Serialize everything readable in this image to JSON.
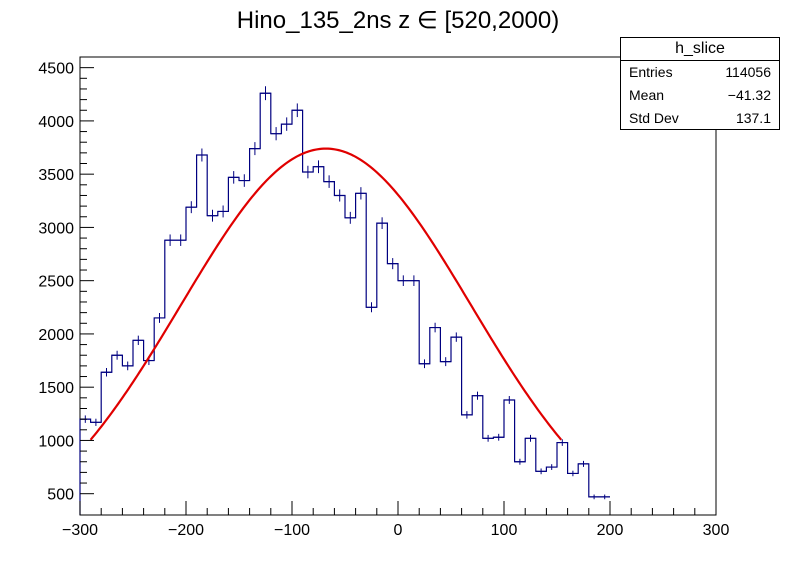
{
  "title": "Hino_135_2ns z  ∈ [520,2000)",
  "statbox": {
    "name": "h_slice",
    "rows": [
      {
        "label": "Entries",
        "value": "114056"
      },
      {
        "label": "Mean",
        "value": "−41.32"
      },
      {
        "label": "Std Dev",
        "value": "137.1"
      }
    ]
  },
  "colors": {
    "histogram": "#000080",
    "fit": "#e00000",
    "axis": "#000000",
    "background": "#ffffff"
  },
  "chart_data": {
    "type": "histogram",
    "title": "Hino_135_2ns z  ∈ [520,2000)",
    "xlabel": "",
    "ylabel": "",
    "xlim": [
      -300,
      300
    ],
    "ylim": [
      300,
      4600
    ],
    "x_ticks": [
      -300,
      -200,
      -100,
      0,
      100,
      200,
      300
    ],
    "x_tick_labels": [
      "−300",
      "−200",
      "−100",
      "0",
      "100",
      "200",
      "300"
    ],
    "y_ticks": [
      500,
      1000,
      1500,
      2000,
      2500,
      3000,
      3500,
      4000,
      4500
    ],
    "y_tick_labels": [
      "500",
      "1000",
      "1500",
      "2000",
      "2500",
      "3000",
      "3500",
      "4000",
      "4500"
    ],
    "bin_edges_start": -300,
    "bin_width": 10,
    "bin_contents": [
      1200,
      1170,
      1640,
      1800,
      1700,
      1940,
      1750,
      2150,
      2880,
      2880,
      3190,
      3680,
      3110,
      3150,
      3470,
      3440,
      3740,
      4260,
      3880,
      3970,
      4100,
      3520,
      3570,
      3430,
      3300,
      3090,
      3320,
      2250,
      3040,
      2660,
      2500,
      2500,
      1720,
      2060,
      1740,
      1970,
      1240,
      1420,
      1020,
      1030,
      1380,
      800,
      1020,
      710,
      750,
      980,
      690,
      780,
      470,
      470
    ],
    "bin_errors": [
      35,
      34,
      40,
      42,
      41,
      44,
      42,
      46,
      54,
      54,
      56,
      61,
      56,
      56,
      59,
      59,
      61,
      65,
      62,
      63,
      64,
      59,
      60,
      59,
      57,
      56,
      58,
      47,
      55,
      52,
      50,
      50,
      41,
      45,
      42,
      44,
      35,
      38,
      32,
      32,
      37,
      28,
      32,
      27,
      27,
      31,
      26,
      28,
      22,
      22
    ],
    "fit": {
      "type": "gaussian",
      "range": [
        -290,
        155
      ],
      "constant": 3740,
      "mean": -68,
      "sigma": 137
    }
  }
}
